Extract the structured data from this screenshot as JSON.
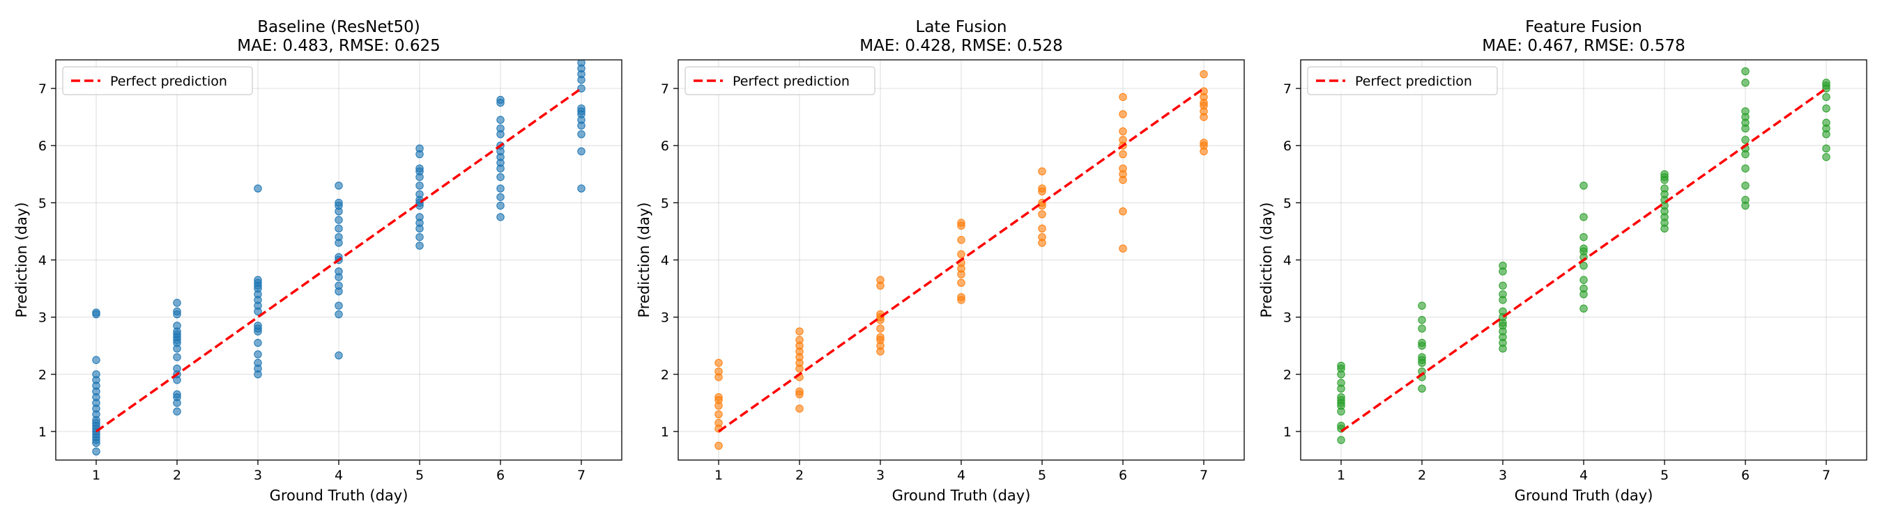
{
  "figure": {
    "background": "#ffffff"
  },
  "chart_data": [
    {
      "type": "scatter",
      "title_line1": "Baseline (ResNet50)",
      "title_line2": "MAE: 0.483, RMSE: 0.625",
      "xlabel": "Ground Truth (day)",
      "ylabel": "Prediction (day)",
      "xlim": [
        0.5,
        7.5
      ],
      "ylim": [
        0.5,
        7.5
      ],
      "xticks": [
        1,
        2,
        3,
        4,
        5,
        6,
        7
      ],
      "yticks": [
        1,
        2,
        3,
        4,
        5,
        6,
        7
      ],
      "grid": true,
      "legend_position": "top-left",
      "color": "#1f77b4",
      "reference_line": {
        "label": "Perfect prediction",
        "color": "#ff0000",
        "style": "dashed",
        "x": [
          1,
          7
        ],
        "y": [
          1,
          7
        ]
      },
      "points": [
        [
          1,
          0.65
        ],
        [
          1,
          0.8
        ],
        [
          1,
          0.85
        ],
        [
          1,
          0.9
        ],
        [
          1,
          0.95
        ],
        [
          1,
          1.0
        ],
        [
          1,
          1.05
        ],
        [
          1,
          1.1
        ],
        [
          1,
          1.15
        ],
        [
          1,
          1.2
        ],
        [
          1,
          1.3
        ],
        [
          1,
          1.4
        ],
        [
          1,
          1.5
        ],
        [
          1,
          1.6
        ],
        [
          1,
          1.7
        ],
        [
          1,
          1.8
        ],
        [
          1,
          1.9
        ],
        [
          1,
          2.0
        ],
        [
          1,
          2.25
        ],
        [
          1,
          3.05
        ],
        [
          1,
          3.08
        ],
        [
          2,
          1.35
        ],
        [
          2,
          1.5
        ],
        [
          2,
          1.6
        ],
        [
          2,
          1.65
        ],
        [
          2,
          1.9
        ],
        [
          2,
          2.0
        ],
        [
          2,
          2.1
        ],
        [
          2,
          2.3
        ],
        [
          2,
          2.45
        ],
        [
          2,
          2.55
        ],
        [
          2,
          2.6
        ],
        [
          2,
          2.65
        ],
        [
          2,
          2.7
        ],
        [
          2,
          2.75
        ],
        [
          2,
          2.85
        ],
        [
          2,
          3.05
        ],
        [
          2,
          3.1
        ],
        [
          2,
          3.25
        ],
        [
          3,
          2.0
        ],
        [
          3,
          2.1
        ],
        [
          3,
          2.2
        ],
        [
          3,
          2.35
        ],
        [
          3,
          2.55
        ],
        [
          3,
          2.75
        ],
        [
          3,
          2.8
        ],
        [
          3,
          2.85
        ],
        [
          3,
          3.1
        ],
        [
          3,
          3.2
        ],
        [
          3,
          3.3
        ],
        [
          3,
          3.4
        ],
        [
          3,
          3.5
        ],
        [
          3,
          3.55
        ],
        [
          3,
          3.6
        ],
        [
          3,
          3.65
        ],
        [
          3,
          5.25
        ],
        [
          4,
          2.33
        ],
        [
          4,
          3.05
        ],
        [
          4,
          3.2
        ],
        [
          4,
          3.45
        ],
        [
          4,
          3.55
        ],
        [
          4,
          3.7
        ],
        [
          4,
          3.8
        ],
        [
          4,
          4.0
        ],
        [
          4,
          4.05
        ],
        [
          4,
          4.3
        ],
        [
          4,
          4.4
        ],
        [
          4,
          4.55
        ],
        [
          4,
          4.7
        ],
        [
          4,
          4.85
        ],
        [
          4,
          4.95
        ],
        [
          4,
          5.0
        ],
        [
          4,
          5.3
        ],
        [
          5,
          4.25
        ],
        [
          5,
          4.4
        ],
        [
          5,
          4.55
        ],
        [
          5,
          4.65
        ],
        [
          5,
          4.75
        ],
        [
          5,
          4.95
        ],
        [
          5,
          5.0
        ],
        [
          5,
          5.05
        ],
        [
          5,
          5.15
        ],
        [
          5,
          5.3
        ],
        [
          5,
          5.45
        ],
        [
          5,
          5.55
        ],
        [
          5,
          5.6
        ],
        [
          5,
          5.85
        ],
        [
          5,
          5.95
        ],
        [
          6,
          4.75
        ],
        [
          6,
          4.95
        ],
        [
          6,
          5.1
        ],
        [
          6,
          5.25
        ],
        [
          6,
          5.45
        ],
        [
          6,
          5.6
        ],
        [
          6,
          5.7
        ],
        [
          6,
          5.8
        ],
        [
          6,
          5.9
        ],
        [
          6,
          6.0
        ],
        [
          6,
          6.2
        ],
        [
          6,
          6.3
        ],
        [
          6,
          6.45
        ],
        [
          6,
          6.75
        ],
        [
          6,
          6.8
        ],
        [
          7,
          5.25
        ],
        [
          7,
          5.9
        ],
        [
          7,
          6.2
        ],
        [
          7,
          6.35
        ],
        [
          7,
          6.45
        ],
        [
          7,
          6.55
        ],
        [
          7,
          6.6
        ],
        [
          7,
          6.65
        ],
        [
          7,
          7.0
        ],
        [
          7,
          7.15
        ],
        [
          7,
          7.25
        ],
        [
          7,
          7.35
        ],
        [
          7,
          7.45
        ]
      ]
    },
    {
      "type": "scatter",
      "title_line1": "Late Fusion",
      "title_line2": "MAE: 0.428, RMSE: 0.528",
      "xlabel": "Ground Truth (day)",
      "ylabel": "Prediction (day)",
      "xlim": [
        0.5,
        7.5
      ],
      "ylim": [
        0.5,
        7.5
      ],
      "xticks": [
        1,
        2,
        3,
        4,
        5,
        6,
        7
      ],
      "yticks": [
        1,
        2,
        3,
        4,
        5,
        6,
        7
      ],
      "grid": true,
      "legend_position": "top-left",
      "color": "#ff7f0e",
      "reference_line": {
        "label": "Perfect prediction",
        "color": "#ff0000",
        "style": "dashed",
        "x": [
          1,
          7
        ],
        "y": [
          1,
          7
        ]
      },
      "points": [
        [
          1,
          0.75
        ],
        [
          1,
          1.05
        ],
        [
          1,
          1.15
        ],
        [
          1,
          1.3
        ],
        [
          1,
          1.45
        ],
        [
          1,
          1.55
        ],
        [
          1,
          1.6
        ],
        [
          1,
          1.95
        ],
        [
          1,
          2.05
        ],
        [
          1,
          2.2
        ],
        [
          2,
          1.4
        ],
        [
          2,
          1.65
        ],
        [
          2,
          1.7
        ],
        [
          2,
          1.95
        ],
        [
          2,
          2.1
        ],
        [
          2,
          2.2
        ],
        [
          2,
          2.3
        ],
        [
          2,
          2.4
        ],
        [
          2,
          2.5
        ],
        [
          2,
          2.6
        ],
        [
          2,
          2.75
        ],
        [
          3,
          2.4
        ],
        [
          3,
          2.5
        ],
        [
          3,
          2.6
        ],
        [
          3,
          2.65
        ],
        [
          3,
          2.8
        ],
        [
          3,
          2.95
        ],
        [
          3,
          3.0
        ],
        [
          3,
          3.05
        ],
        [
          3,
          3.55
        ],
        [
          3,
          3.65
        ],
        [
          4,
          3.3
        ],
        [
          4,
          3.35
        ],
        [
          4,
          3.6
        ],
        [
          4,
          3.75
        ],
        [
          4,
          3.85
        ],
        [
          4,
          3.95
        ],
        [
          4,
          4.1
        ],
        [
          4,
          4.35
        ],
        [
          4,
          4.6
        ],
        [
          4,
          4.65
        ],
        [
          5,
          4.3
        ],
        [
          5,
          4.4
        ],
        [
          5,
          4.55
        ],
        [
          5,
          4.8
        ],
        [
          5,
          4.95
        ],
        [
          5,
          5.0
        ],
        [
          5,
          5.2
        ],
        [
          5,
          5.25
        ],
        [
          5,
          5.55
        ],
        [
          6,
          4.2
        ],
        [
          6,
          4.85
        ],
        [
          6,
          5.4
        ],
        [
          6,
          5.5
        ],
        [
          6,
          5.6
        ],
        [
          6,
          5.85
        ],
        [
          6,
          6.0
        ],
        [
          6,
          6.1
        ],
        [
          6,
          6.25
        ],
        [
          6,
          6.55
        ],
        [
          6,
          6.85
        ],
        [
          7,
          5.9
        ],
        [
          7,
          6.0
        ],
        [
          7,
          6.05
        ],
        [
          7,
          6.5
        ],
        [
          7,
          6.6
        ],
        [
          7,
          6.7
        ],
        [
          7,
          6.75
        ],
        [
          7,
          6.85
        ],
        [
          7,
          6.95
        ],
        [
          7,
          7.25
        ]
      ]
    },
    {
      "type": "scatter",
      "title_line1": "Feature Fusion",
      "title_line2": "MAE: 0.467, RMSE: 0.578",
      "xlabel": "Ground Truth (day)",
      "ylabel": "Prediction (day)",
      "xlim": [
        0.5,
        7.5
      ],
      "ylim": [
        0.5,
        7.5
      ],
      "xticks": [
        1,
        2,
        3,
        4,
        5,
        6,
        7
      ],
      "yticks": [
        1,
        2,
        3,
        4,
        5,
        6,
        7
      ],
      "grid": true,
      "legend_position": "top-left",
      "color": "#2ca02c",
      "reference_line": {
        "label": "Perfect prediction",
        "color": "#ff0000",
        "style": "dashed",
        "x": [
          1,
          7
        ],
        "y": [
          1,
          7
        ]
      },
      "points": [
        [
          1,
          0.85
        ],
        [
          1,
          1.05
        ],
        [
          1,
          1.1
        ],
        [
          1,
          1.35
        ],
        [
          1,
          1.45
        ],
        [
          1,
          1.5
        ],
        [
          1,
          1.55
        ],
        [
          1,
          1.6
        ],
        [
          1,
          1.75
        ],
        [
          1,
          1.85
        ],
        [
          1,
          2.0
        ],
        [
          1,
          2.1
        ],
        [
          1,
          2.15
        ],
        [
          2,
          1.75
        ],
        [
          2,
          1.95
        ],
        [
          2,
          2.05
        ],
        [
          2,
          2.2
        ],
        [
          2,
          2.25
        ],
        [
          2,
          2.3
        ],
        [
          2,
          2.5
        ],
        [
          2,
          2.55
        ],
        [
          2,
          2.8
        ],
        [
          2,
          2.95
        ],
        [
          2,
          3.2
        ],
        [
          3,
          2.45
        ],
        [
          3,
          2.55
        ],
        [
          3,
          2.65
        ],
        [
          3,
          2.75
        ],
        [
          3,
          2.85
        ],
        [
          3,
          2.9
        ],
        [
          3,
          3.0
        ],
        [
          3,
          3.1
        ],
        [
          3,
          3.3
        ],
        [
          3,
          3.4
        ],
        [
          3,
          3.55
        ],
        [
          3,
          3.8
        ],
        [
          3,
          3.9
        ],
        [
          4,
          3.15
        ],
        [
          4,
          3.4
        ],
        [
          4,
          3.5
        ],
        [
          4,
          3.65
        ],
        [
          4,
          3.9
        ],
        [
          4,
          4.05
        ],
        [
          4,
          4.15
        ],
        [
          4,
          4.2
        ],
        [
          4,
          4.4
        ],
        [
          4,
          4.75
        ],
        [
          4,
          5.3
        ],
        [
          5,
          4.55
        ],
        [
          5,
          4.65
        ],
        [
          5,
          4.75
        ],
        [
          5,
          4.85
        ],
        [
          5,
          4.95
        ],
        [
          5,
          5.05
        ],
        [
          5,
          5.15
        ],
        [
          5,
          5.25
        ],
        [
          5,
          5.4
        ],
        [
          5,
          5.45
        ],
        [
          5,
          5.5
        ],
        [
          6,
          4.95
        ],
        [
          6,
          5.05
        ],
        [
          6,
          5.3
        ],
        [
          6,
          5.6
        ],
        [
          6,
          5.85
        ],
        [
          6,
          5.95
        ],
        [
          6,
          6.1
        ],
        [
          6,
          6.3
        ],
        [
          6,
          6.4
        ],
        [
          6,
          6.5
        ],
        [
          6,
          6.6
        ],
        [
          6,
          7.1
        ],
        [
          6,
          7.3
        ],
        [
          7,
          5.8
        ],
        [
          7,
          5.95
        ],
        [
          7,
          6.2
        ],
        [
          7,
          6.3
        ],
        [
          7,
          6.4
        ],
        [
          7,
          6.65
        ],
        [
          7,
          6.85
        ],
        [
          7,
          7.0
        ],
        [
          7,
          7.05
        ],
        [
          7,
          7.1
        ]
      ]
    }
  ]
}
